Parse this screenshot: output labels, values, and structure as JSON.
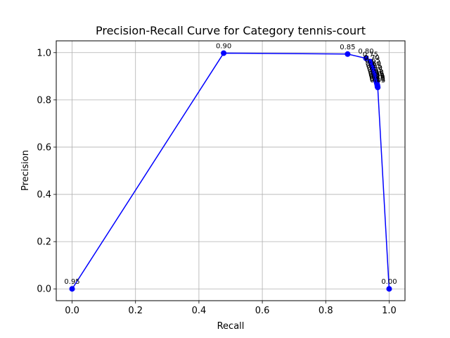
{
  "chart_data": {
    "type": "line",
    "title": "Precision-Recall Curve for Category tennis-court",
    "xlabel": "Recall",
    "ylabel": "Precision",
    "xlim": [
      -0.05,
      1.05
    ],
    "ylim": [
      -0.05,
      1.05
    ],
    "xticks": [
      "0.0",
      "0.2",
      "0.4",
      "0.6",
      "0.8",
      "1.0"
    ],
    "yticks": [
      "0.0",
      "0.2",
      "0.4",
      "0.6",
      "0.8",
      "1.0"
    ],
    "grid": true,
    "line_color": "#0000ff",
    "series": [
      {
        "points": [
          {
            "x": 0.0,
            "y": 0.0,
            "label": "0.95"
          },
          {
            "x": 0.478,
            "y": 0.998,
            "label": "0.90"
          },
          {
            "x": 0.869,
            "y": 0.994,
            "label": "0.85"
          },
          {
            "x": 0.927,
            "y": 0.976,
            "label": "0.80"
          },
          {
            "x": 0.941,
            "y": 0.962,
            "label": "0.75"
          },
          {
            "x": 0.945,
            "y": 0.948,
            "label": "0.70"
          },
          {
            "x": 0.948,
            "y": 0.936,
            "label": "0.65"
          },
          {
            "x": 0.95,
            "y": 0.924,
            "label": "0.60"
          },
          {
            "x": 0.952,
            "y": 0.914,
            "label": "0.55"
          },
          {
            "x": 0.954,
            "y": 0.905,
            "label": "0.50"
          },
          {
            "x": 0.956,
            "y": 0.896,
            "label": "0.45"
          },
          {
            "x": 0.958,
            "y": 0.888,
            "label": "0.40"
          },
          {
            "x": 0.959,
            "y": 0.882,
            "label": "0.35"
          },
          {
            "x": 0.96,
            "y": 0.876,
            "label": "0.30"
          },
          {
            "x": 0.961,
            "y": 0.871,
            "label": "0.25"
          },
          {
            "x": 0.962,
            "y": 0.866,
            "label": "0.20"
          },
          {
            "x": 0.963,
            "y": 0.861,
            "label": "0.15"
          },
          {
            "x": 0.963,
            "y": 0.857,
            "label": "0.10"
          },
          {
            "x": 0.964,
            "y": 0.853,
            "label": "0.05"
          },
          {
            "x": 1.0,
            "y": 0.0,
            "label": "0.00"
          }
        ]
      }
    ]
  }
}
